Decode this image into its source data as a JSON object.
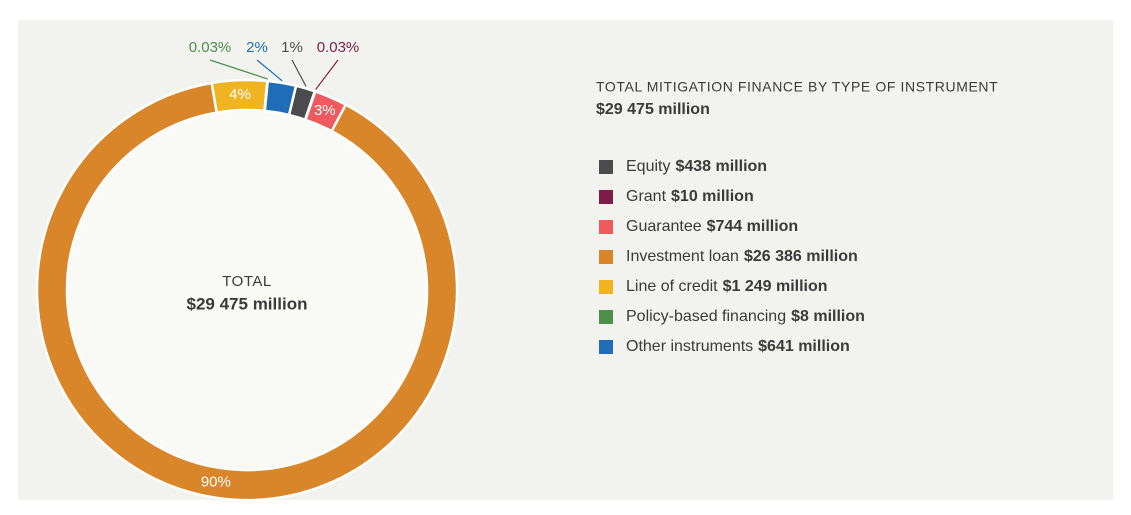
{
  "chart_data": {
    "type": "donut",
    "subtitle": "TOTAL MITIGATION FINANCE BY TYPE OF INSTRUMENT",
    "subtitle_amount": "$29 475 million",
    "center_label": "TOTAL",
    "center_amount": "$29 475 million",
    "categories": [
      "Equity",
      "Grant",
      "Guarantee",
      "Investment loan",
      "Line of credit",
      "Policy-based financing",
      "Other instruments"
    ],
    "values": [
      438,
      10,
      744,
      26386,
      1249,
      8,
      641
    ],
    "value_labels": [
      "1%",
      "0.03%",
      "3%",
      "90%",
      "4%",
      "0.03%",
      "2%"
    ],
    "amount_labels": [
      "$438 million",
      "$10 million",
      "$744 million",
      "$26 386 million",
      "$1 249 million",
      "$8 million",
      "$641 million"
    ],
    "colors": [
      "#4b4b4d",
      "#7d1d47",
      "#f05a5e",
      "#d9862b",
      "#f0b322",
      "#4b8f4b",
      "#1f6db6"
    ]
  }
}
